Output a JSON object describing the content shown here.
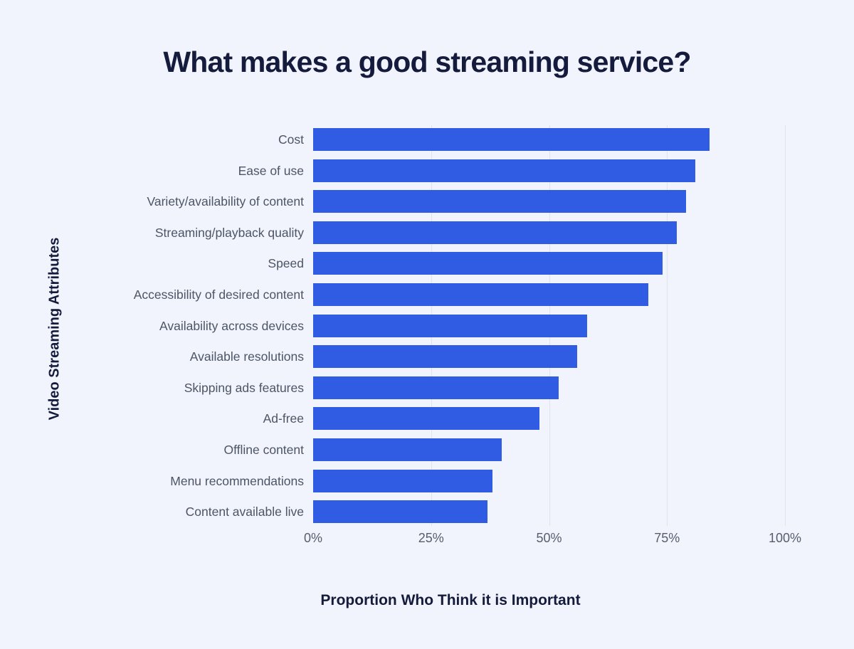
{
  "chart_data": {
    "type": "bar",
    "orientation": "horizontal",
    "title": "What makes a good streaming service?",
    "xlabel": "Proportion Who Think it is Important",
    "ylabel": "Video Streaming Attributes",
    "categories": [
      "Cost",
      "Ease of use",
      "Variety/availability of content",
      "Streaming/playback quality",
      "Speed",
      "Accessibility of desired content",
      "Availability across devices",
      "Available resolutions",
      "Skipping ads features",
      "Ad-free",
      "Offline content",
      "Menu recommendations",
      "Content available live"
    ],
    "values": [
      84,
      81,
      79,
      77,
      74,
      71,
      58,
      56,
      52,
      48,
      40,
      38,
      37
    ],
    "unit": "%",
    "xlim": [
      0,
      100
    ],
    "x_ticks": [
      "0%",
      "25%",
      "50%",
      "75%",
      "100%"
    ],
    "x_tick_values": [
      0,
      25,
      50,
      75,
      100
    ],
    "grid": "vertical-gridlines-at-ticks",
    "legend": "none",
    "colors": {
      "bar": "#2f5ce2",
      "background": "#f1f4fc",
      "title_text": "#151b3c",
      "category_text": "#4c5566",
      "tick_text": "#565e6e",
      "gridline": "#dfe4ec"
    }
  }
}
